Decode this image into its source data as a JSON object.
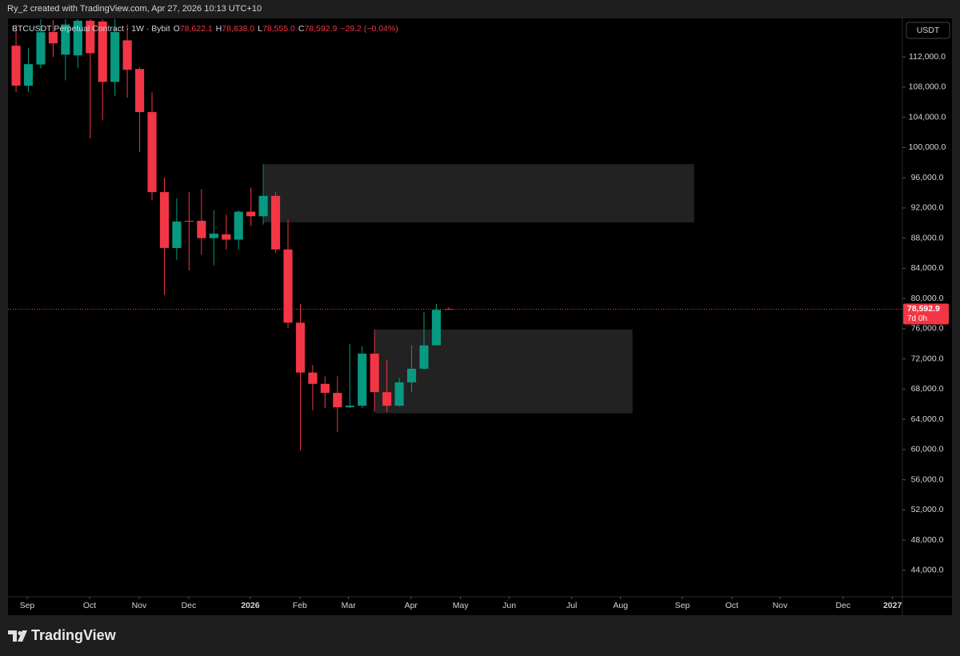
{
  "header": {
    "caption": "Ry_2 created with TradingView.com, Apr 27, 2026 10:13 UTC+10",
    "brand": "TradingView"
  },
  "chart_data": {
    "type": "candlestick",
    "symbol": "BTCUSDT Perpetual Contract · 1W · Bybit",
    "ohlc_legend": [
      {
        "key": "O",
        "value": "78,622.1"
      },
      {
        "key": "H",
        "value": "78,838.0"
      },
      {
        "key": "L",
        "value": "78,555.0"
      },
      {
        "key": "C",
        "value": "78,592.9"
      }
    ],
    "change": "−29.2 (−0.04%)",
    "currency": "USDT",
    "up_color": "#089981",
    "down_color": "#f23645",
    "xlim": [
      -0.65,
      71.7
    ],
    "xticks": [
      {
        "value": 0.9,
        "label": "Sep"
      },
      {
        "value": 5.95,
        "label": "Oct"
      },
      {
        "value": 9.96,
        "label": "Nov"
      },
      {
        "value": 13.97,
        "label": "Dec"
      },
      {
        "value": 18.95,
        "label": "2026"
      },
      {
        "value": 22.96,
        "label": "Feb"
      },
      {
        "value": 26.9,
        "label": "Mar"
      },
      {
        "value": 31.95,
        "label": "Apr"
      },
      {
        "value": 35.96,
        "label": "May"
      },
      {
        "value": 39.9,
        "label": "Jun"
      },
      {
        "value": 44.95,
        "label": "Jul"
      },
      {
        "value": 48.9,
        "label": "Aug"
      },
      {
        "value": 53.9,
        "label": "Sep"
      },
      {
        "value": 57.9,
        "label": "Oct"
      },
      {
        "value": 61.8,
        "label": "Nov"
      },
      {
        "value": 66.9,
        "label": "Dec"
      },
      {
        "value": 70.9,
        "label": "2027"
      }
    ],
    "ylim": [
      40600,
      117000
    ],
    "yticks": [
      {
        "value": 44000,
        "label": "44,000.0"
      },
      {
        "value": 48000,
        "label": "48,000.0"
      },
      {
        "value": 52000,
        "label": "52,000.0"
      },
      {
        "value": 56000,
        "label": "56,000.0"
      },
      {
        "value": 60000,
        "label": "60,000.0"
      },
      {
        "value": 64000,
        "label": "64,000.0"
      },
      {
        "value": 68000,
        "label": "68,000.0"
      },
      {
        "value": 72000,
        "label": "72,000.0"
      },
      {
        "value": 76000,
        "label": "76,000.0"
      },
      {
        "value": 80000,
        "label": "80,000.0"
      },
      {
        "value": 84000,
        "label": "84,000.0"
      },
      {
        "value": 88000,
        "label": "88,000.0"
      },
      {
        "value": 92000,
        "label": "92,000.0"
      },
      {
        "value": 96000,
        "label": "96,000.0"
      },
      {
        "value": 100000,
        "label": "100,000.0"
      },
      {
        "value": 104000,
        "label": "104,000.0"
      },
      {
        "value": 108000,
        "label": "108,000.0"
      },
      {
        "value": 112000,
        "label": "112,000.0"
      }
    ],
    "x": [
      0,
      1,
      2,
      3,
      4,
      5,
      6,
      7,
      8,
      9,
      10,
      11,
      12,
      13,
      14,
      15,
      16,
      17,
      18,
      19,
      20,
      21,
      22,
      23,
      24,
      25,
      26,
      27,
      28,
      29,
      30,
      31,
      32,
      33,
      34,
      35
    ],
    "open": [
      113483,
      108187,
      111000,
      115300,
      112300,
      112200,
      116800,
      116700,
      108700,
      114200,
      110400,
      104700,
      94100,
      86700,
      90300,
      90300,
      88000,
      88500,
      87800,
      91500,
      90900,
      93600,
      86500,
      76800,
      70200,
      68700,
      67500,
      65600,
      65800,
      72700,
      67600,
      65800,
      68900,
      70700,
      73800,
      78622.1
    ],
    "high": [
      116300,
      113165,
      116980,
      116900,
      117000,
      117000,
      117000,
      117000,
      117000,
      116300,
      110600,
      107300,
      96000,
      93300,
      94100,
      94500,
      91700,
      91100,
      91700,
      94700,
      97800,
      94100,
      90400,
      79300,
      71200,
      69700,
      69700,
      74000,
      73700,
      75900,
      71900,
      69500,
      73800,
      78200,
      79300,
      78838.0
    ],
    "low": [
      107340,
      107340,
      110500,
      112000,
      108900,
      110500,
      101200,
      103600,
      106800,
      106600,
      99400,
      93000,
      80500,
      85100,
      83700,
      85800,
      84400,
      86500,
      86500,
      89600,
      89800,
      86100,
      76100,
      59900,
      65200,
      65500,
      62300,
      65500,
      65500,
      65000,
      65000,
      65700,
      67600,
      70600,
      73800,
      78555.0
    ],
    "close": [
      108187,
      111050,
      115280,
      113800,
      116300,
      116800,
      112500,
      108700,
      115300,
      110300,
      104700,
      94100,
      86700,
      90200,
      90200,
      88000,
      88600,
      87800,
      91500,
      90900,
      93600,
      86500,
      76800,
      70200,
      68700,
      67500,
      65600,
      65800,
      72700,
      67600,
      65800,
      68900,
      70700,
      73800,
      78500,
      78592.9
    ],
    "zones": [
      {
        "color": "#222222",
        "x": [
          20.05,
          54.85
        ],
        "y": [
          90100,
          97800
        ]
      },
      {
        "color": "#222222",
        "x": [
          29.04,
          49.87
        ],
        "y": [
          64800,
          75900
        ]
      }
    ],
    "last_price": {
      "value": 78592.9,
      "label": "78,592.9"
    },
    "countdown": "7d 0h"
  }
}
